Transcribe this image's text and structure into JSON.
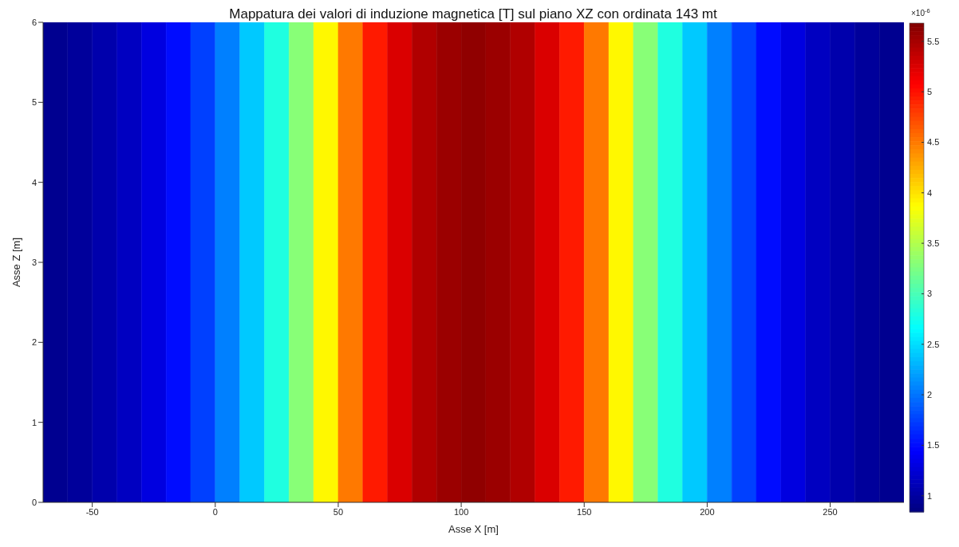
{
  "chart_data": {
    "type": "heatmap",
    "title": "Mappatura dei valori di induzione magnetica [T] sul piano XZ con ordinata 143 mt",
    "xlabel": "Asse X [m]",
    "ylabel": "Asse Z [m]",
    "clabel": "×10$^{-6}$",
    "x": [
      -65,
      -55,
      -45,
      -35,
      -25,
      -15,
      -5,
      5,
      15,
      25,
      35,
      45,
      55,
      65,
      75,
      85,
      95,
      105,
      115,
      125,
      135,
      145,
      155,
      165,
      175,
      185,
      195,
      205,
      215,
      225,
      235,
      245,
      255,
      265,
      275
    ],
    "cells": [
      [
        0.92,
        0.97,
        1.05,
        1.15,
        1.3,
        1.5,
        1.75,
        2.05,
        2.4,
        2.8,
        3.3,
        3.9,
        4.5,
        4.95,
        5.25,
        5.45,
        5.55,
        5.6,
        5.55,
        5.45,
        5.25,
        4.95,
        4.5,
        3.9,
        3.3,
        2.8,
        2.4,
        2.05,
        1.75,
        1.5,
        1.3,
        1.15,
        1.05,
        0.97,
        0.92
      ]
    ],
    "xlim": [
      -70,
      280
    ],
    "xticks": [
      -50,
      0,
      50,
      100,
      150,
      200,
      250
    ],
    "ylim": [
      0,
      6
    ],
    "yticks": [
      0,
      1,
      2,
      3,
      4,
      5,
      6
    ],
    "clim": [
      0.84,
      5.68
    ],
    "cticks": [
      1,
      1.5,
      2,
      2.5,
      3,
      3.5,
      4,
      4.5,
      5,
      5.5
    ]
  }
}
